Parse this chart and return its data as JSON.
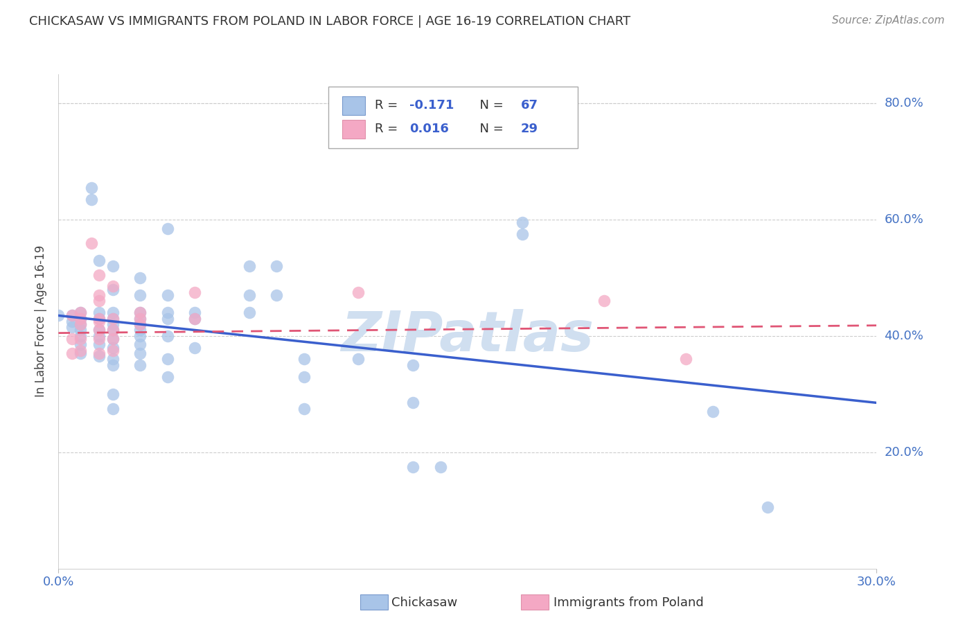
{
  "title": "CHICKASAW VS IMMIGRANTS FROM POLAND IN LABOR FORCE | AGE 16-19 CORRELATION CHART",
  "source": "Source: ZipAtlas.com",
  "ylabel": "In Labor Force | Age 16-19",
  "xlim": [
    0.0,
    0.3
  ],
  "ylim": [
    0.0,
    0.85
  ],
  "ytick_labels": [
    "20.0%",
    "40.0%",
    "60.0%",
    "80.0%"
  ],
  "ytick_values": [
    0.2,
    0.4,
    0.6,
    0.8
  ],
  "xtick_labels": [
    "0.0%",
    "30.0%"
  ],
  "xtick_values": [
    0.0,
    0.3
  ],
  "chickasaw_color": "#a8c4e8",
  "poland_color": "#f4a8c4",
  "line1_color": "#3a5fcd",
  "line2_color": "#e05575",
  "watermark_color": "#d0dff0",
  "chickasaw_scatter": [
    [
      0.0,
      0.435
    ],
    [
      0.005,
      0.435
    ],
    [
      0.005,
      0.425
    ],
    [
      0.005,
      0.415
    ],
    [
      0.008,
      0.44
    ],
    [
      0.008,
      0.43
    ],
    [
      0.008,
      0.42
    ],
    [
      0.008,
      0.41
    ],
    [
      0.008,
      0.4
    ],
    [
      0.008,
      0.385
    ],
    [
      0.008,
      0.37
    ],
    [
      0.012,
      0.655
    ],
    [
      0.012,
      0.635
    ],
    [
      0.015,
      0.53
    ],
    [
      0.015,
      0.44
    ],
    [
      0.015,
      0.43
    ],
    [
      0.015,
      0.41
    ],
    [
      0.015,
      0.4
    ],
    [
      0.015,
      0.385
    ],
    [
      0.015,
      0.365
    ],
    [
      0.02,
      0.52
    ],
    [
      0.02,
      0.48
    ],
    [
      0.02,
      0.44
    ],
    [
      0.02,
      0.43
    ],
    [
      0.02,
      0.42
    ],
    [
      0.02,
      0.41
    ],
    [
      0.02,
      0.395
    ],
    [
      0.02,
      0.38
    ],
    [
      0.02,
      0.36
    ],
    [
      0.02,
      0.35
    ],
    [
      0.02,
      0.3
    ],
    [
      0.02,
      0.275
    ],
    [
      0.03,
      0.5
    ],
    [
      0.03,
      0.47
    ],
    [
      0.03,
      0.44
    ],
    [
      0.03,
      0.43
    ],
    [
      0.03,
      0.42
    ],
    [
      0.03,
      0.41
    ],
    [
      0.03,
      0.4
    ],
    [
      0.03,
      0.385
    ],
    [
      0.03,
      0.37
    ],
    [
      0.03,
      0.35
    ],
    [
      0.04,
      0.585
    ],
    [
      0.04,
      0.47
    ],
    [
      0.04,
      0.44
    ],
    [
      0.04,
      0.43
    ],
    [
      0.04,
      0.4
    ],
    [
      0.04,
      0.36
    ],
    [
      0.04,
      0.33
    ],
    [
      0.05,
      0.44
    ],
    [
      0.05,
      0.43
    ],
    [
      0.05,
      0.38
    ],
    [
      0.07,
      0.52
    ],
    [
      0.07,
      0.47
    ],
    [
      0.07,
      0.44
    ],
    [
      0.08,
      0.52
    ],
    [
      0.08,
      0.47
    ],
    [
      0.09,
      0.36
    ],
    [
      0.09,
      0.33
    ],
    [
      0.09,
      0.275
    ],
    [
      0.11,
      0.36
    ],
    [
      0.13,
      0.35
    ],
    [
      0.13,
      0.285
    ],
    [
      0.13,
      0.175
    ],
    [
      0.14,
      0.175
    ],
    [
      0.17,
      0.595
    ],
    [
      0.17,
      0.575
    ],
    [
      0.24,
      0.27
    ],
    [
      0.26,
      0.105
    ]
  ],
  "poland_scatter": [
    [
      0.005,
      0.435
    ],
    [
      0.005,
      0.395
    ],
    [
      0.005,
      0.37
    ],
    [
      0.008,
      0.44
    ],
    [
      0.008,
      0.43
    ],
    [
      0.008,
      0.42
    ],
    [
      0.008,
      0.395
    ],
    [
      0.008,
      0.375
    ],
    [
      0.012,
      0.56
    ],
    [
      0.015,
      0.505
    ],
    [
      0.015,
      0.47
    ],
    [
      0.015,
      0.46
    ],
    [
      0.015,
      0.43
    ],
    [
      0.015,
      0.425
    ],
    [
      0.015,
      0.41
    ],
    [
      0.015,
      0.395
    ],
    [
      0.015,
      0.37
    ],
    [
      0.02,
      0.485
    ],
    [
      0.02,
      0.43
    ],
    [
      0.02,
      0.41
    ],
    [
      0.02,
      0.395
    ],
    [
      0.02,
      0.375
    ],
    [
      0.03,
      0.44
    ],
    [
      0.03,
      0.43
    ],
    [
      0.03,
      0.42
    ],
    [
      0.05,
      0.475
    ],
    [
      0.05,
      0.43
    ],
    [
      0.11,
      0.475
    ],
    [
      0.2,
      0.46
    ],
    [
      0.23,
      0.36
    ]
  ]
}
